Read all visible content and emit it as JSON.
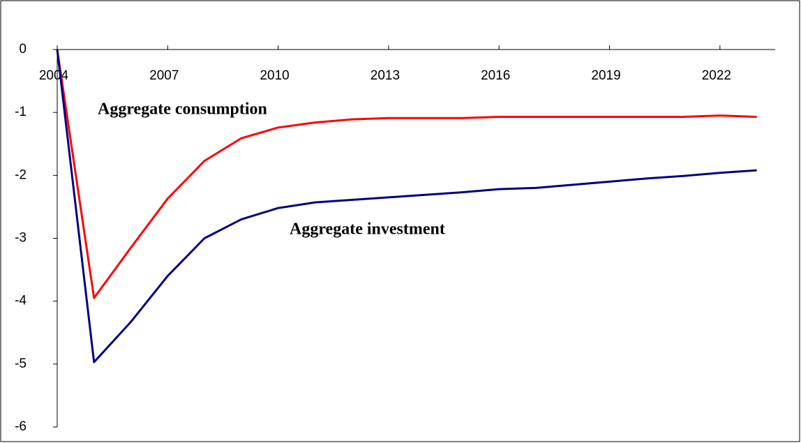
{
  "chart_data": {
    "type": "line",
    "x": [
      2004,
      2005,
      2006,
      2007,
      2008,
      2009,
      2010,
      2011,
      2012,
      2013,
      2014,
      2015,
      2016,
      2017,
      2018,
      2019,
      2020,
      2021,
      2022,
      2023
    ],
    "series": [
      {
        "name": "Aggregate consumption",
        "color": "#ff0000",
        "values": [
          0,
          -3.95,
          -3.15,
          -2.37,
          -1.77,
          -1.41,
          -1.24,
          -1.16,
          -1.11,
          -1.09,
          -1.09,
          -1.09,
          -1.07,
          -1.07,
          -1.07,
          -1.07,
          -1.07,
          -1.07,
          -1.05,
          -1.07
        ]
      },
      {
        "name": "Aggregate investment",
        "color": "#000080",
        "values": [
          0,
          -4.97,
          -4.33,
          -3.6,
          -3.0,
          -2.7,
          -2.52,
          -2.43,
          -2.39,
          -2.35,
          -2.31,
          -2.27,
          -2.22,
          -2.2,
          -2.15,
          -2.1,
          -2.05,
          -2.01,
          -1.96,
          -1.92
        ]
      }
    ],
    "xlim": [
      2004,
      2023.5
    ],
    "xticks": [
      2004,
      2007,
      2010,
      2013,
      2016,
      2019,
      2022
    ],
    "ylim": [
      -6,
      0
    ],
    "yticks": [
      0,
      -1,
      -2,
      -3,
      -4,
      -5,
      -6
    ]
  }
}
